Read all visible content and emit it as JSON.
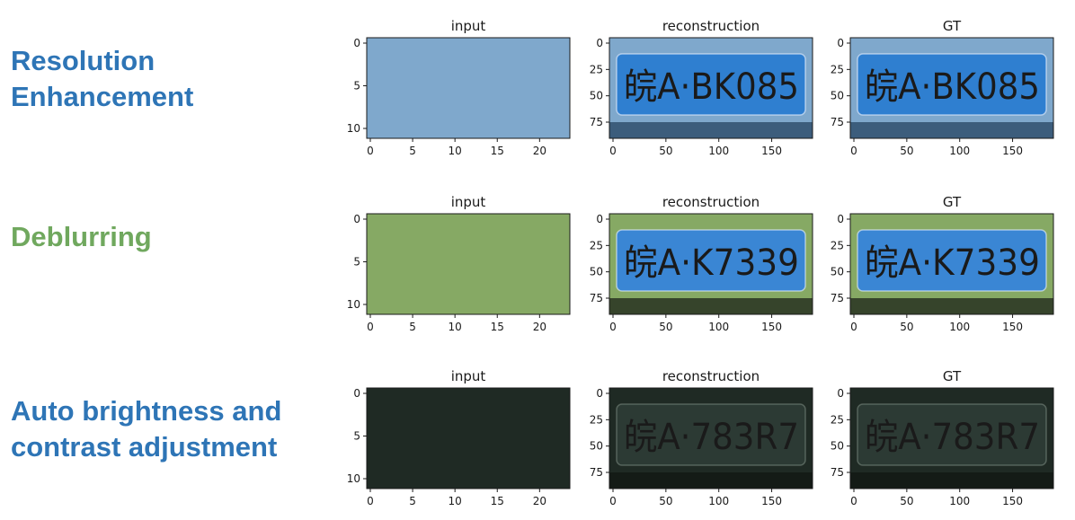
{
  "colors": {
    "blue_label": "#2E75B6",
    "green_label": "#70A85E"
  },
  "rows": [
    {
      "label_lines": [
        "Resolution",
        "Enhancement"
      ],
      "label_color": "#2E75B6",
      "plate": "BK085",
      "plate_prefix": "皖A",
      "theme": "blue",
      "panels": [
        {
          "title": "input",
          "kind": "pixelated",
          "x_ticks": [
            "0",
            "5",
            "10",
            "15",
            "20"
          ],
          "y_ticks": [
            "0",
            "5",
            "10"
          ]
        },
        {
          "title": "reconstruction",
          "kind": "plate",
          "x_ticks": [
            "0",
            "50",
            "100",
            "150"
          ],
          "y_ticks": [
            "0",
            "25",
            "50",
            "75"
          ]
        },
        {
          "title": "GT",
          "kind": "plate",
          "x_ticks": [
            "0",
            "50",
            "100",
            "150"
          ],
          "y_ticks": [
            "0",
            "25",
            "50",
            "75"
          ]
        }
      ]
    },
    {
      "label_lines": [
        "Deblurring"
      ],
      "label_color": "#70A85E",
      "plate": "K7339",
      "plate_prefix": "皖A",
      "theme": "green",
      "panels": [
        {
          "title": "input",
          "kind": "pixelated",
          "x_ticks": [
            "0",
            "5",
            "10",
            "15",
            "20"
          ],
          "y_ticks": [
            "0",
            "5",
            "10"
          ]
        },
        {
          "title": "reconstruction",
          "kind": "plate",
          "x_ticks": [
            "0",
            "50",
            "100",
            "150"
          ],
          "y_ticks": [
            "0",
            "25",
            "50",
            "75"
          ]
        },
        {
          "title": "GT",
          "kind": "plate",
          "x_ticks": [
            "0",
            "50",
            "100",
            "150"
          ],
          "y_ticks": [
            "0",
            "25",
            "50",
            "75"
          ]
        }
      ]
    },
    {
      "label_lines": [
        "Auto brightness and",
        "contrast adjustment"
      ],
      "label_color": "#2E75B6",
      "plate": "783R7",
      "plate_prefix": "皖A",
      "theme": "dark",
      "panels": [
        {
          "title": "input",
          "kind": "pixelated",
          "x_ticks": [
            "0",
            "5",
            "10",
            "15",
            "20"
          ],
          "y_ticks": [
            "0",
            "5",
            "10"
          ]
        },
        {
          "title": "reconstruction",
          "kind": "plate",
          "x_ticks": [
            "0",
            "50",
            "100",
            "150"
          ],
          "y_ticks": [
            "0",
            "25",
            "50",
            "75"
          ]
        },
        {
          "title": "GT",
          "kind": "plate",
          "x_ticks": [
            "0",
            "50",
            "100",
            "150"
          ],
          "y_ticks": [
            "0",
            "25",
            "50",
            "75"
          ]
        }
      ]
    }
  ]
}
